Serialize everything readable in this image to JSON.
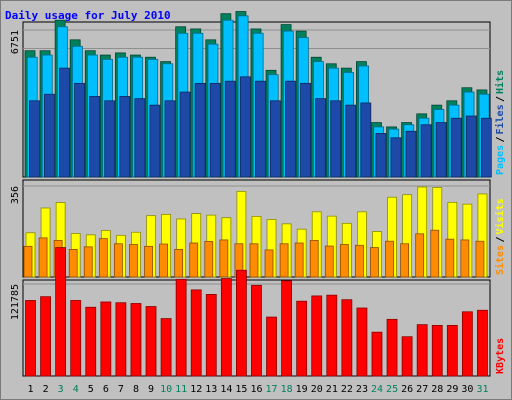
{
  "chart_data": {
    "type": "bar",
    "title": "Daily usage for July 2010",
    "categories": [
      "1",
      "2",
      "3",
      "4",
      "5",
      "6",
      "7",
      "8",
      "9",
      "10",
      "11",
      "12",
      "13",
      "14",
      "15",
      "16",
      "17",
      "18",
      "19",
      "20",
      "21",
      "22",
      "23",
      "24",
      "25",
      "26",
      "27",
      "28",
      "29",
      "30",
      "31"
    ],
    "weekend_days": [
      3,
      4,
      10,
      11,
      17,
      18,
      24,
      25,
      31
    ],
    "panels": [
      {
        "id": "top",
        "ymax": 6751,
        "ytick_label": "6751",
        "legend": [
          "Pages",
          "Files",
          "Hits"
        ],
        "series": [
          {
            "name": "Hits",
            "color": "#00805c",
            "values": [
              5800,
              5800,
              7200,
              6300,
              5800,
              5600,
              5700,
              5600,
              5500,
              5300,
              6900,
              6800,
              6300,
              7500,
              7600,
              6800,
              4900,
              7000,
              6700,
              5500,
              5200,
              5000,
              5300,
              2500,
              2300,
              2500,
              2900,
              3300,
              3500,
              4100,
              4000
            ]
          },
          {
            "name": "Files",
            "color": "#00bfff",
            "values": [
              5500,
              5600,
              6900,
              6000,
              5600,
              5400,
              5500,
              5500,
              5400,
              5200,
              6600,
              6600,
              6100,
              7200,
              7400,
              6600,
              4700,
              6700,
              6400,
              5300,
              5000,
              4800,
              5100,
              2300,
              2200,
              2400,
              2700,
              3100,
              3300,
              3900,
              3800
            ]
          },
          {
            "name": "Pages",
            "color": "#1d4aa8",
            "values": [
              3500,
              3800,
              5000,
              4300,
              3700,
              3500,
              3700,
              3600,
              3300,
              3500,
              3900,
              4300,
              4300,
              4400,
              4600,
              4400,
              3500,
              4400,
              4300,
              3600,
              3500,
              3300,
              3400,
              2000,
              1800,
              2100,
              2400,
              2500,
              2700,
              2800,
              2700
            ]
          }
        ]
      },
      {
        "id": "mid",
        "ymax": 356,
        "ytick_label": "356",
        "legend": [
          "Sites",
          "Visits"
        ],
        "series": [
          {
            "name": "Visits",
            "color": "#ffff00",
            "values": [
              173,
              270,
              291,
              170,
              165,
              182,
              163,
              175,
              240,
              245,
              227,
              248,
              242,
              232,
              335,
              237,
              225,
              208,
              187,
              255,
              238,
              210,
              255,
              178,
              312,
              322,
              352,
              350,
              292,
              285,
              325
            ]
          },
          {
            "name": "Sites",
            "color": "#ff8c00",
            "values": [
              120,
              153,
              143,
              108,
              118,
              150,
              130,
              127,
              120,
              129,
              108,
              133,
              139,
              145,
              130,
              130,
              106,
              130,
              133,
              143,
              121,
              127,
              124,
              115,
              140,
              130,
              169,
              183,
              148,
              145,
              140
            ]
          }
        ]
      },
      {
        "id": "bot",
        "ymax": 121785,
        "ytick_label": "121785",
        "legend": [
          "KBytes"
        ],
        "series": [
          {
            "name": "KBytes",
            "color": "#ff0000",
            "values": [
              100000,
              105000,
              170000,
              100000,
              91000,
              98000,
              97000,
              96000,
              92000,
              76000,
              128000,
              114000,
              108000,
              129000,
              140000,
              120000,
              78000,
              126000,
              99000,
              106000,
              107000,
              101000,
              90000,
              58000,
              75000,
              52000,
              68000,
              67000,
              67000,
              85000,
              87000
            ]
          }
        ]
      }
    ]
  }
}
